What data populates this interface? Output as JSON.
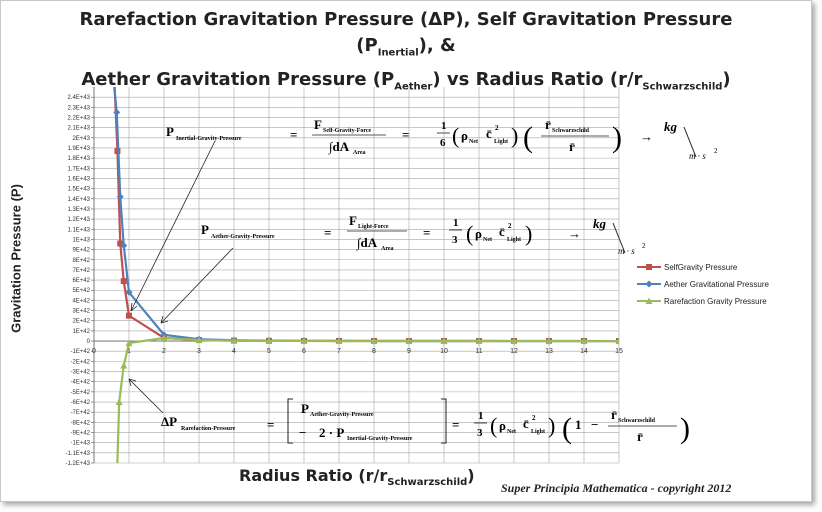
{
  "title": {
    "line1_a": "Rarefaction Gravitation Pressure (ΔP), Self Gravitation Pressure (P",
    "line1_sub": "Inertial",
    "line1_b": "), &",
    "line2_a": "Aether Gravitation Pressure (P",
    "line2_sub": "Aether",
    "line2_b": ")   vs  Radius Ratio (r/r",
    "line2_sub2": "Schwarzschild",
    "line2_c": ")"
  },
  "copyright": "Super Principia Mathematica - copyright 2012",
  "chart_data": {
    "type": "line",
    "title": "Rarefaction Gravitation Pressure (ΔP), Self Gravitation Pressure (PInertial), & Aether Gravitation Pressure (PAether) vs Radius Ratio (r/rSchwarzschild)",
    "xlabel_a": "Radius Ratio (r/r",
    "xlabel_sub": "Schwarzschild",
    "xlabel_b": ")",
    "ylabel": "Gravitation Pressure (P)",
    "xlim": [
      0,
      15
    ],
    "ylim": [
      -1.2e+43,
      2.5e+43
    ],
    "x_ticks": [
      "0",
      "1",
      "2",
      "3",
      "4",
      "5",
      "6",
      "7",
      "8",
      "9",
      "10",
      "11",
      "12",
      "13",
      "14",
      "15"
    ],
    "y_ticks": [
      {
        "v": 2.4e+43,
        "label": "2.4E+43"
      },
      {
        "v": 2.3e+43,
        "label": "2.3E+43"
      },
      {
        "v": 2.2e+43,
        "label": "2.2E+43"
      },
      {
        "v": 2.1e+43,
        "label": "2.1E+43"
      },
      {
        "v": 2e+43,
        "label": "2E+43"
      },
      {
        "v": 1.9e+43,
        "label": "1.9E+43"
      },
      {
        "v": 1.8e+43,
        "label": "1.8E+43"
      },
      {
        "v": 1.7e+43,
        "label": "1.7E+43"
      },
      {
        "v": 1.6e+43,
        "label": "1.6E+43"
      },
      {
        "v": 1.5e+43,
        "label": "1.5E+43"
      },
      {
        "v": 1.4e+43,
        "label": "1.4E+43"
      },
      {
        "v": 1.3e+43,
        "label": "1.3E+43"
      },
      {
        "v": 1.2e+43,
        "label": "1.2E+43"
      },
      {
        "v": 1.1e+43,
        "label": "1.1E+43"
      },
      {
        "v": 1e+43,
        "label": "1E+43"
      },
      {
        "v": 9e+42,
        "label": "9E+42"
      },
      {
        "v": 8e+42,
        "label": "8E+42"
      },
      {
        "v": 7e+42,
        "label": "7E+42"
      },
      {
        "v": 6e+42,
        "label": "6E+42"
      },
      {
        "v": 5e+42,
        "label": "5E+42"
      },
      {
        "v": 4e+42,
        "label": "4E+42"
      },
      {
        "v": 3e+42,
        "label": "3E+42"
      },
      {
        "v": 2e+42,
        "label": "2E+42"
      },
      {
        "v": 1e+42,
        "label": "1E+42"
      },
      {
        "v": 0,
        "label": "0"
      },
      {
        "v": -1e+42,
        "label": "-1E+42"
      },
      {
        "v": -2e+42,
        "label": "-2E+42"
      },
      {
        "v": -3e+42,
        "label": "-3E+42"
      },
      {
        "v": -4e+42,
        "label": "-4E+42"
      },
      {
        "v": -5e+42,
        "label": "-5E+42"
      },
      {
        "v": -6e+42,
        "label": "-6E+42"
      },
      {
        "v": -7e+42,
        "label": "-7E+42"
      },
      {
        "v": -8e+42,
        "label": "-8E+42"
      },
      {
        "v": -9e+42,
        "label": "-9E+42"
      },
      {
        "v": -1e+43,
        "label": "-1E+43"
      },
      {
        "v": -1.1e+43,
        "label": "-1.1E+43"
      },
      {
        "v": -1.2e+43,
        "label": "-1.2E+43"
      }
    ],
    "grid": true,
    "legend_position": "right",
    "series": [
      {
        "name": "SelfGravity Pressure",
        "color": "#c0504d",
        "marker": "square",
        "x": [
          0.67,
          0.75,
          0.85,
          1,
          2,
          3,
          4,
          5,
          6,
          7,
          8,
          9,
          10,
          11,
          12,
          13,
          14,
          15
        ],
        "y": [
          1.87e+43,
          9.6e+42,
          5.9e+42,
          2.5e+42,
          3.1e+41,
          9.3e+40,
          3.9e+40,
          2e+40,
          1.2e+40,
          7.3e+39,
          4.9e+39,
          3.4e+39,
          2.5e+39,
          1.9e+39,
          1.4e+39,
          1.1e+39,
          9.1e+38,
          7.4e+38
        ]
      },
      {
        "name": "Aether Gravitational Pressure",
        "color": "#4f81bd",
        "marker": "diamond",
        "x": [
          0.65,
          0.75,
          0.85,
          1,
          2,
          3,
          4,
          5,
          6,
          7,
          8,
          9,
          10,
          11,
          12,
          13,
          14,
          15
        ],
        "y": [
          2.25e+43,
          1.42e+43,
          9.4e+42,
          4.8e+42,
          6.1e+41,
          1.8e+41,
          7.6e+40,
          3.9e+40,
          2.3e+40,
          1.4e+40,
          9.5e+39,
          6.7e+39,
          4.9e+39,
          3.7e+39,
          2.8e+39,
          2.2e+39,
          1.8e+39,
          1.4e+39
        ]
      },
      {
        "name": "Rarefaction Gravity Pressure",
        "color": "#9bbb59",
        "marker": "triangle",
        "x": [
          0.72,
          0.85,
          1,
          2,
          3,
          4,
          5,
          6,
          7,
          8,
          9,
          10,
          11,
          12,
          13,
          14,
          15
        ],
        "y": [
          -6e+42,
          -2.4e+42,
          -2e+41,
          3e+41,
          1e+41,
          4e+40,
          2e+40,
          1.1e+40,
          7e+39,
          4.7e+39,
          3.3e+39,
          2.4e+39,
          1.8e+39,
          1.4e+39,
          1.1e+39,
          9e+38,
          7e+38
        ]
      }
    ],
    "annotations": {
      "eq1": {
        "lhs": "P",
        "lhs_sub": "Inertial-Gravity-Pressure",
        "eq_sign": "=",
        "num": "F",
        "num_sub": "Self-Gravity-Force",
        "den": "∫dA",
        "den_sub": "Area",
        "coef_num": "1",
        "coef_den": "6",
        "rho": "ρ",
        "rho_sub": "Net",
        "c": "c̄",
        "c_sup": "2",
        "c_sub": "Light",
        "ratio_num": "r̄",
        "ratio_num_sub": "Schwarzschild",
        "ratio_den": "r̄",
        "arrow": "→",
        "unit_num": "kg",
        "unit_den": "m · s",
        "unit_sup": "2"
      },
      "eq2": {
        "lhs": "P",
        "lhs_sub": "Aether-Gravity-Pressure",
        "eq_sign": "=",
        "num": "F",
        "num_sub": "Light-Force",
        "den": "∫dA",
        "den_sub": "Area",
        "coef_num": "1",
        "coef_den": "3",
        "rho": "ρ",
        "rho_sub": "Net",
        "c": "c̄",
        "c_sup": "2",
        "c_sub": "Light",
        "arrow": "→",
        "unit_num": "kg",
        "unit_den": "m · s",
        "unit_sup": "2"
      },
      "eq3": {
        "lhs": "ΔP",
        "lhs_sub": "Rarefaction-Pressure",
        "eq_sign": "=",
        "top": "P",
        "top_sub": "Aether-Gravity-Pressure",
        "bot_minus": "−",
        "bot_coef": "2 · P",
        "bot_sub": "Inertial-Gravity-Pressure",
        "coef_num": "1",
        "coef_den": "3",
        "rho": "ρ",
        "rho_sub": "Net",
        "c": "c̄",
        "c_sup": "2",
        "c_sub": "Light",
        "one": "1",
        "minus": "−",
        "ratio_num": "r̄",
        "ratio_num_sub": "Schwarzschild",
        "ratio_den": "r̄"
      }
    }
  }
}
